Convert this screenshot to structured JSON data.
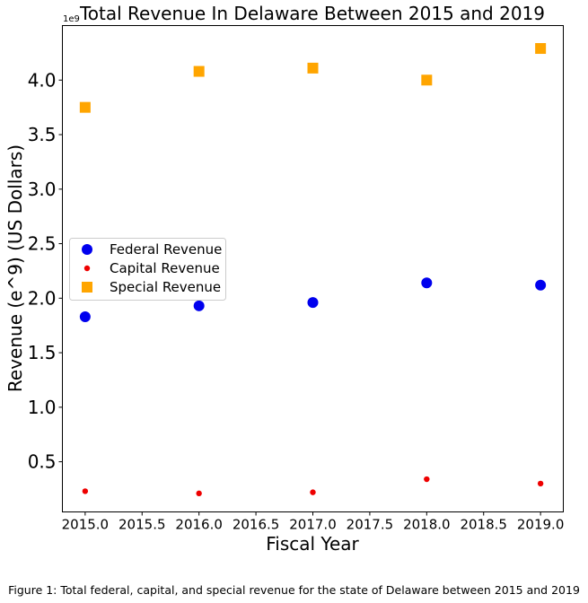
{
  "chart_data": {
    "type": "scatter",
    "title": "Total Revenue In Delaware Between 2015 and 2019",
    "xlabel": "Fiscal Year",
    "ylabel": "Revenue (e^9) (US Dollars)",
    "y_offset_label": "1e9",
    "xlim": [
      2014.8,
      2019.2
    ],
    "ylim": [
      0.04,
      4.5
    ],
    "x_ticks": [
      2015.0,
      2015.5,
      2016.0,
      2016.5,
      2017.0,
      2017.5,
      2018.0,
      2018.5,
      2019.0
    ],
    "x_tick_labels": [
      "2015.0",
      "2015.5",
      "2016.0",
      "2016.5",
      "2017.0",
      "2017.5",
      "2018.0",
      "2018.5",
      "2019.0"
    ],
    "y_ticks": [
      0.5,
      1.0,
      1.5,
      2.0,
      2.5,
      3.0,
      3.5,
      4.0
    ],
    "y_tick_labels": [
      "0.5",
      "1.0",
      "1.5",
      "2.0",
      "2.5",
      "3.0",
      "3.5",
      "4.0"
    ],
    "grid": false,
    "legend_position": "center-left",
    "x": [
      2015,
      2016,
      2017,
      2018,
      2019
    ],
    "series": [
      {
        "name": "Federal Revenue",
        "marker": "circle",
        "size": "large",
        "color": "#0000ee",
        "values": [
          1.83,
          1.93,
          1.96,
          2.14,
          2.12
        ]
      },
      {
        "name": "Capital Revenue",
        "marker": "circle",
        "size": "small",
        "color": "#ee0000",
        "values": [
          0.23,
          0.21,
          0.22,
          0.34,
          0.3
        ]
      },
      {
        "name": "Special Revenue",
        "marker": "square",
        "size": "large",
        "color": "#ffa500",
        "values": [
          3.75,
          4.08,
          4.11,
          4.0,
          4.29
        ]
      }
    ]
  },
  "caption": "Figure 1: Total federal, capital, and special revenue for the state of Delaware between 2015 and 2019"
}
